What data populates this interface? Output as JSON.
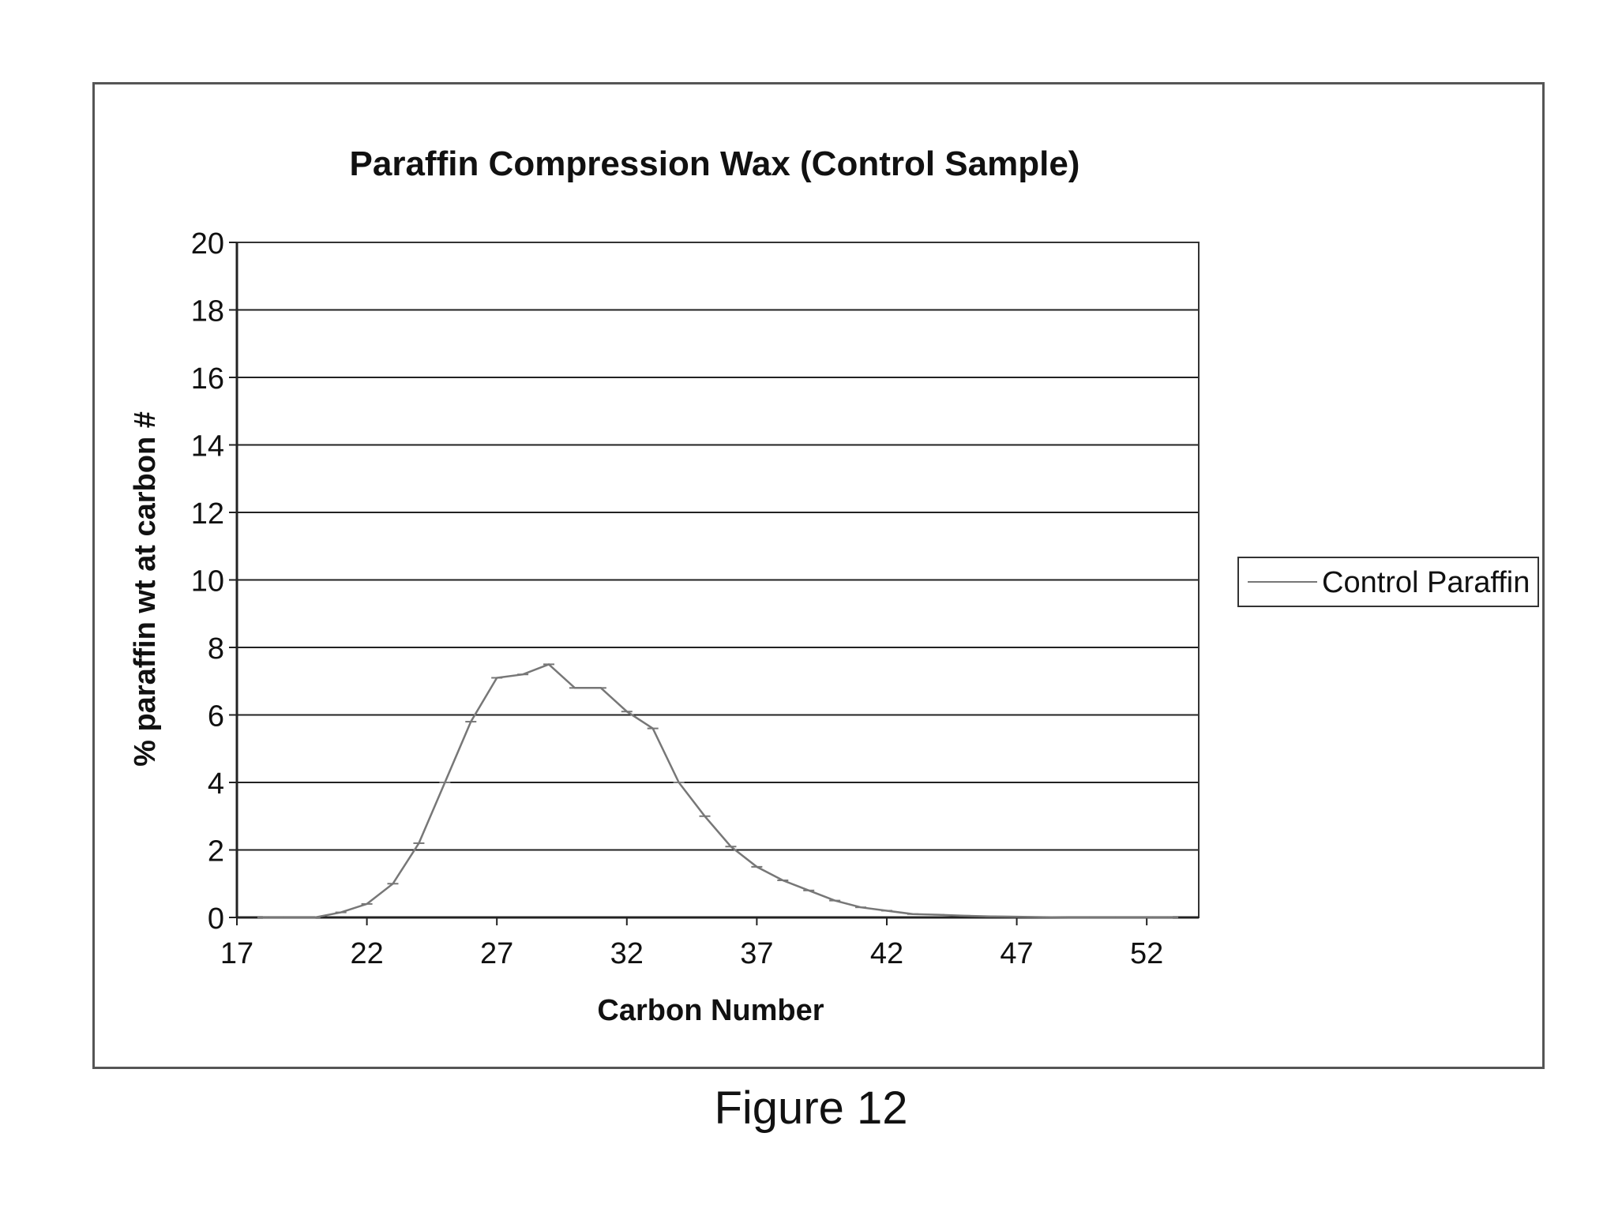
{
  "figure": {
    "caption": "Figure 12"
  },
  "chart_data": {
    "type": "line",
    "title": "Paraffin Compression Wax (Control Sample)",
    "xlabel": "Carbon Number",
    "ylabel": "% paraffin wt at carbon #",
    "xlim": [
      17,
      54
    ],
    "ylim": [
      0,
      20
    ],
    "xticks": [
      17,
      22,
      27,
      32,
      37,
      42,
      47,
      52
    ],
    "yticks": [
      0,
      2,
      4,
      6,
      8,
      10,
      12,
      14,
      16,
      18,
      20
    ],
    "grid": {
      "horizontal": true,
      "vertical": false
    },
    "legend": {
      "position": "right"
    },
    "series": [
      {
        "name": "Control Paraffin",
        "color": "#777777",
        "x": [
          18,
          19,
          20,
          21,
          22,
          23,
          24,
          25,
          26,
          27,
          28,
          29,
          30,
          31,
          32,
          33,
          34,
          35,
          36,
          37,
          38,
          39,
          40,
          41,
          42,
          43,
          44,
          45,
          46,
          47,
          48,
          49,
          50,
          51,
          52,
          53
        ],
        "y": [
          0.0,
          0.0,
          0.0,
          0.15,
          0.4,
          1.0,
          2.2,
          4.0,
          5.8,
          7.1,
          7.2,
          7.5,
          6.8,
          6.8,
          6.1,
          5.6,
          4.0,
          3.0,
          2.1,
          1.5,
          1.1,
          0.8,
          0.5,
          0.3,
          0.2,
          0.1,
          0.08,
          0.05,
          0.03,
          0.02,
          0.01,
          0.0,
          0.0,
          0.0,
          0.0,
          0.0
        ]
      }
    ]
  }
}
